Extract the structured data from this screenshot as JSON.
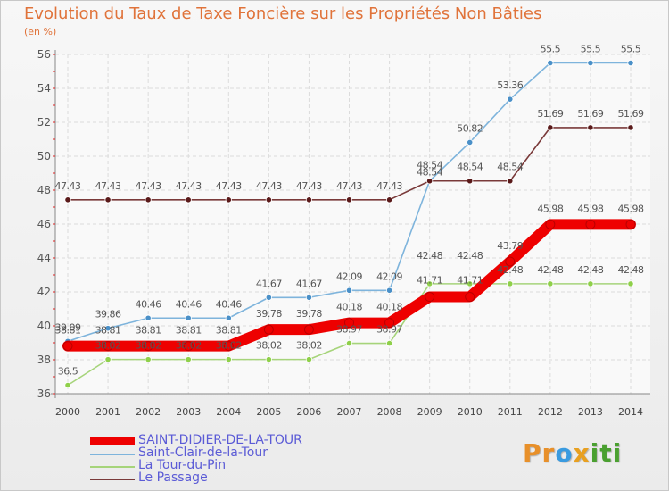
{
  "title": "Evolution du Taux de Taxe Foncière sur les Propriétés Non Bâties",
  "unit_label": "(en %)",
  "logo": {
    "letters": [
      "P",
      "r",
      "o",
      "x",
      "i",
      "t",
      "i"
    ],
    "colors": [
      "#e8902a",
      "#e8902a",
      "#3a9be0",
      "#e8a020",
      "#4aa030",
      "#4aa030",
      "#4aa030"
    ]
  },
  "chart_data": {
    "type": "line",
    "x": [
      "2000",
      "2001",
      "2002",
      "2003",
      "2004",
      "2005",
      "2006",
      "2007",
      "2008",
      "2009",
      "2010",
      "2011",
      "2012",
      "2013",
      "2014"
    ],
    "ylim": [
      36,
      56
    ],
    "yticks": [
      36,
      38,
      40,
      42,
      44,
      46,
      48,
      50,
      52,
      54,
      56
    ],
    "grid": true,
    "legend_position": "bottom-left",
    "series": [
      {
        "name": "SAINT-DIDIER-DE-LA-TOUR",
        "color": "#ee0000",
        "marker_fill": "#ee0000",
        "thick": true,
        "values": [
          38.81,
          38.81,
          38.81,
          38.81,
          38.81,
          39.78,
          39.78,
          40.18,
          40.18,
          41.71,
          41.71,
          43.79,
          45.98,
          45.98,
          45.98
        ],
        "labels": [
          "38.81",
          "38.81",
          "38.81",
          "38.81",
          "38.81",
          "39.78",
          "39.78",
          "40.18",
          "40.18",
          "41.71",
          "41.71",
          "43.79",
          "45.98",
          "45.98",
          "45.98"
        ],
        "label_dy": [
          -14,
          -14,
          -14,
          -14,
          -14,
          -14,
          -14,
          -14,
          -14,
          -15,
          -15,
          -14,
          -14,
          -14,
          -14
        ]
      },
      {
        "name": "Saint-Clair-de-la-Tour",
        "color": "#7eb4dc",
        "marker_fill": "#4a90c8",
        "thick": false,
        "values": [
          39.09,
          39.86,
          40.46,
          40.46,
          40.46,
          41.67,
          41.67,
          42.09,
          42.09,
          48.54,
          50.82,
          53.36,
          55.5,
          55.5,
          55.5
        ],
        "labels": [
          "39.09",
          "39.86",
          "40.46",
          "40.46",
          "40.46",
          "41.67",
          "41.67",
          "42.09",
          "42.09",
          "48.54",
          "50.82",
          "53.36",
          "55.5",
          "55.5",
          "55.5"
        ],
        "label_dy": [
          -12,
          -12,
          -12,
          -12,
          -12,
          -12,
          -12,
          -12,
          -12,
          -14,
          -12,
          -12,
          -12,
          -12,
          -12
        ]
      },
      {
        "name": "La Tour-du-Pin",
        "color": "#a6d47a",
        "marker_fill": "#8fd04a",
        "thick": false,
        "values": [
          36.5,
          38.02,
          38.02,
          38.02,
          38.02,
          38.02,
          38.02,
          38.97,
          38.97,
          42.48,
          42.48,
          42.48,
          42.48,
          42.48,
          42.48
        ],
        "labels": [
          "36.5",
          "38.02",
          "38.02",
          "38.02",
          "38.02",
          "38.02",
          "38.02",
          "38.97",
          "38.97",
          "42.48",
          "42.48",
          "42.48",
          "42.48",
          "42.48",
          "42.48"
        ],
        "label_dy": [
          -12,
          -12,
          -12,
          -12,
          -12,
          -12,
          -12,
          -12,
          -12,
          -28,
          -28,
          -12,
          -12,
          -12,
          -12
        ]
      },
      {
        "name": "Le Passage",
        "color": "#7a3a3a",
        "marker_fill": "#5a1a1a",
        "thick": false,
        "values": [
          47.43,
          47.43,
          47.43,
          47.43,
          47.43,
          47.43,
          47.43,
          47.43,
          47.43,
          48.54,
          48.54,
          48.54,
          51.69,
          51.69,
          51.69
        ],
        "labels": [
          "47.43",
          "47.43",
          "47.43",
          "47.43",
          "47.43",
          "47.43",
          "47.43",
          "47.43",
          "47.43",
          "48.54",
          "48.54",
          "48.54",
          "51.69",
          "51.69",
          "51.69"
        ],
        "label_dy": [
          -12,
          -12,
          -12,
          -12,
          -12,
          -12,
          -12,
          -12,
          -12,
          -6,
          -12,
          -12,
          -12,
          -12,
          -12
        ]
      }
    ]
  }
}
